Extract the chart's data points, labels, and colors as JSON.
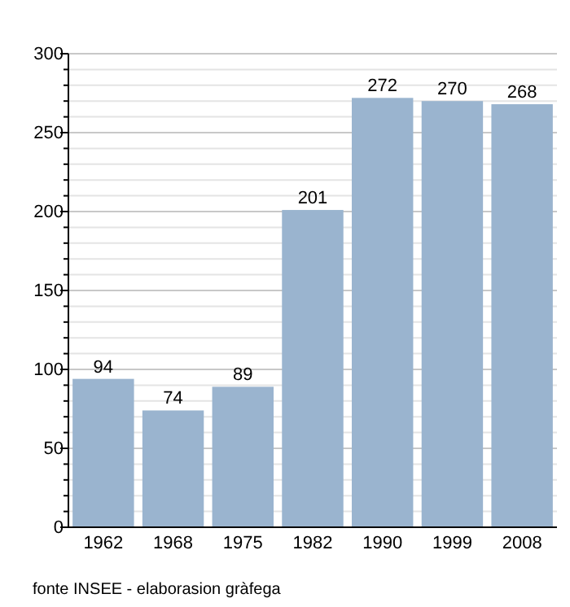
{
  "chart_data": {
    "type": "bar",
    "categories": [
      "1962",
      "1968",
      "1975",
      "1982",
      "1990",
      "1999",
      "2008"
    ],
    "values": [
      94,
      74,
      89,
      201,
      272,
      270,
      268
    ],
    "color": "#9ab4cf",
    "data_labels": true,
    "ylim": [
      0,
      300
    ],
    "yticks": [
      0,
      {
        "value": 10,
        "label": null
      },
      {
        "value": 20,
        "label": null
      },
      {
        "value": 30,
        "label": null
      },
      {
        "value": 40,
        "label": null
      },
      50,
      {
        "value": 60,
        "label": null
      },
      {
        "value": 70,
        "label": null
      },
      {
        "value": 80,
        "label": null
      },
      {
        "value": 90,
        "label": null
      },
      100,
      {
        "value": 110,
        "label": null
      },
      {
        "value": 120,
        "label": null
      },
      {
        "value": 130,
        "label": null
      },
      {
        "value": 140,
        "label": null
      },
      150,
      {
        "value": 160,
        "label": null
      },
      {
        "value": 170,
        "label": null
      },
      {
        "value": 180,
        "label": null
      },
      {
        "value": 190,
        "label": null
      },
      200,
      {
        "value": 210,
        "label": null
      },
      {
        "value": 220,
        "label": null
      },
      {
        "value": 230,
        "label": null
      },
      {
        "value": 240,
        "label": null
      },
      250,
      {
        "value": 260,
        "label": null
      },
      {
        "value": 270,
        "label": null
      },
      {
        "value": 280,
        "label": null
      },
      {
        "value": 290,
        "label": null
      },
      300
    ],
    "grid": "y",
    "annotations": [
      "fonte INSEE - elaborasion gràfega"
    ]
  }
}
